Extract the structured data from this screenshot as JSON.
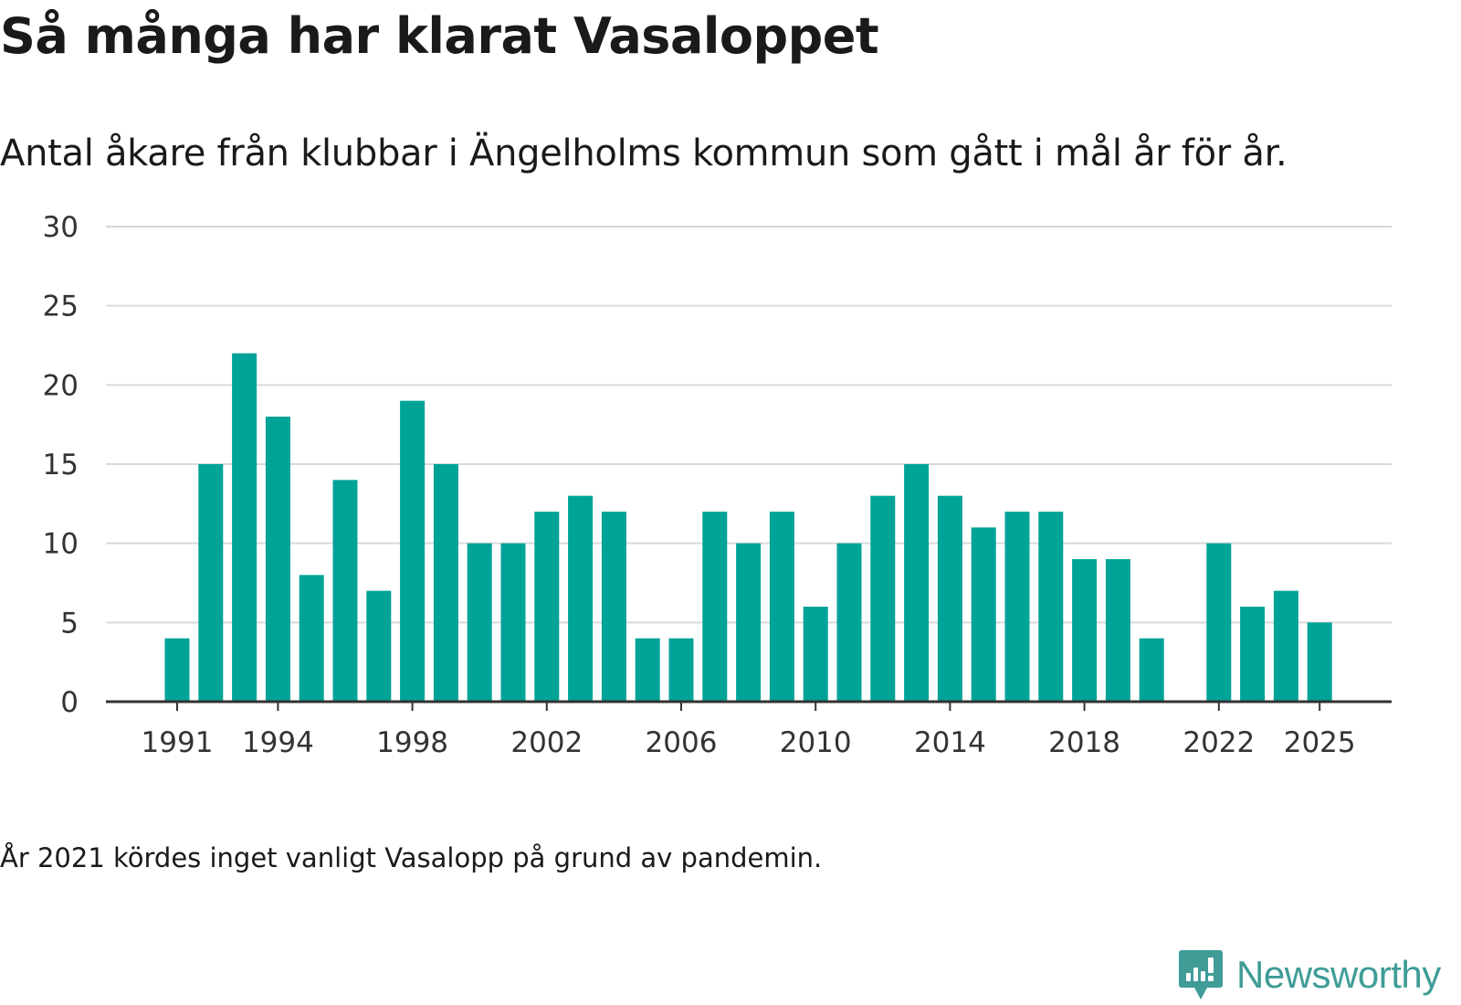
{
  "title": "Så många har klarat Vasaloppet",
  "subtitle": "Antal åkare från klubbar i Ängelholms kommun som gått i mål år för år.",
  "note": "År 2021 kördes inget vanligt Vasalopp på grund av pandemin.",
  "brand": {
    "name": "Newsworthy",
    "icon": "newsworthy-logo-icon",
    "color": "#3f9c97"
  },
  "colors": {
    "bar": "#00a398",
    "grid": "#d9d9d9",
    "axis": "#333333",
    "tick_text": "#333333"
  },
  "chart_data": {
    "type": "bar",
    "categories": [
      1991,
      1992,
      1993,
      1994,
      1995,
      1996,
      1997,
      1998,
      1999,
      2000,
      2001,
      2002,
      2003,
      2004,
      2005,
      2006,
      2007,
      2008,
      2009,
      2010,
      2011,
      2012,
      2013,
      2014,
      2015,
      2016,
      2017,
      2018,
      2019,
      2020,
      2021,
      2022,
      2023,
      2024,
      2025
    ],
    "values": [
      4,
      15,
      22,
      18,
      8,
      14,
      7,
      19,
      15,
      10,
      10,
      12,
      13,
      12,
      4,
      4,
      12,
      10,
      12,
      6,
      10,
      13,
      15,
      13,
      11,
      12,
      12,
      9,
      9,
      4,
      null,
      10,
      6,
      7,
      5
    ],
    "x_tick_labels": [
      "1991",
      "1994",
      "1998",
      "2002",
      "2006",
      "2010",
      "2014",
      "2018",
      "2022",
      "2025"
    ],
    "y_ticks": [
      0,
      5,
      10,
      15,
      20,
      25,
      30
    ],
    "ylim": [
      0,
      30
    ],
    "xlabel": "",
    "ylabel": "",
    "grid": true
  }
}
